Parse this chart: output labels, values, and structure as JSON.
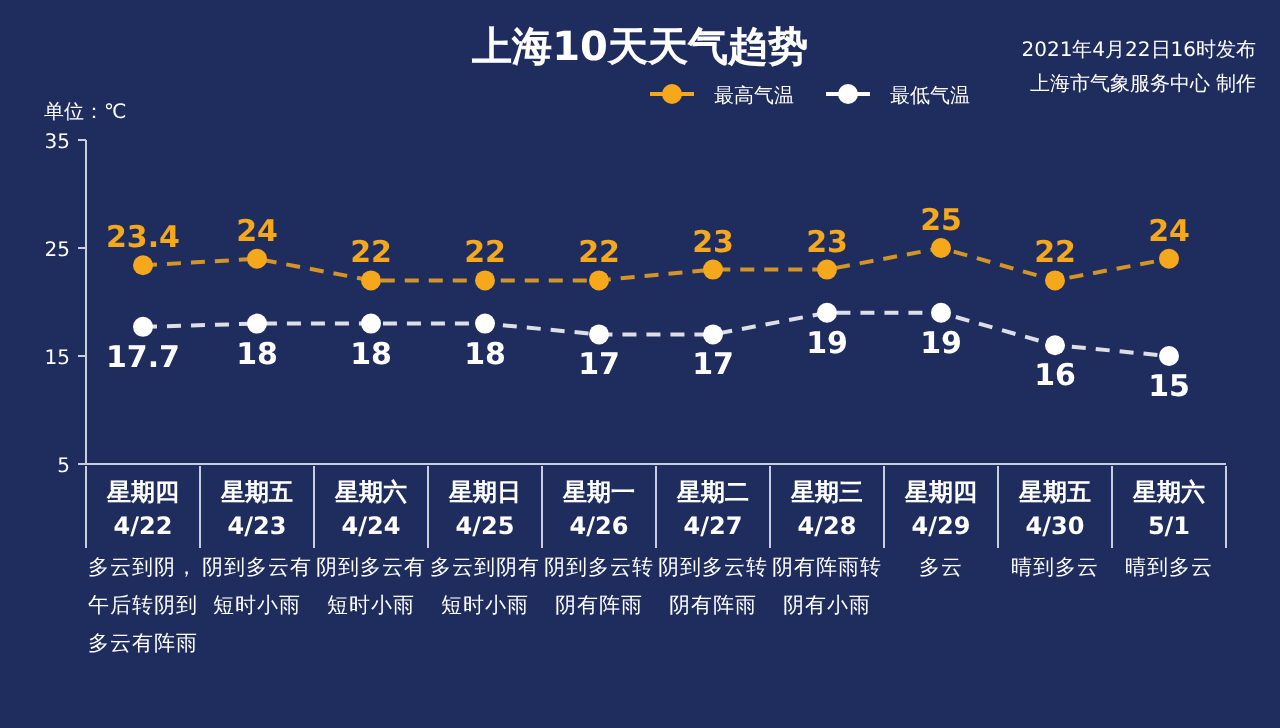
{
  "chart_data": {
    "type": "line",
    "title": "上海10天天气趋势",
    "ylabel": "单位：℃",
    "categories": [
      "星期四\n4/22\n多云到阴，午后转阴到多云有阵雨",
      "星期五\n4/23\n阴到多云有短时小雨",
      "星期六\n4/24\n阴到多云有短时小雨",
      "星期日\n4/25\n多云到阴有短时小雨",
      "星期一\n4/26\n阴到多云转阴有阵雨",
      "星期二\n4/27\n阴到多云转阴有阵雨",
      "星期三\n4/28\n阴有阵雨转阴有小雨",
      "星期四\n4/29\n多云",
      "星期五\n4/30\n晴到多云",
      "星期六\n5/1\n晴到多云"
    ],
    "series": [
      {
        "name": "最高气温",
        "color": "#f5a81c",
        "values": [
          23.4,
          24,
          22,
          22,
          22,
          23,
          23,
          25,
          22,
          24
        ]
      },
      {
        "name": "最低气温",
        "color": "#ffffff",
        "values": [
          17.7,
          18,
          18,
          18,
          17,
          17,
          19,
          19,
          16,
          15
        ]
      }
    ],
    "ylim": [
      5,
      35
    ],
    "yticks": [
      5,
      15,
      25,
      35
    ],
    "grid": false,
    "legend": "top",
    "marker": "circle",
    "line_style": "dashed",
    "data_labels": true,
    "annotations": [
      "2021年4月22日16时发布",
      "上海市气象服务中心 制作"
    ]
  }
}
